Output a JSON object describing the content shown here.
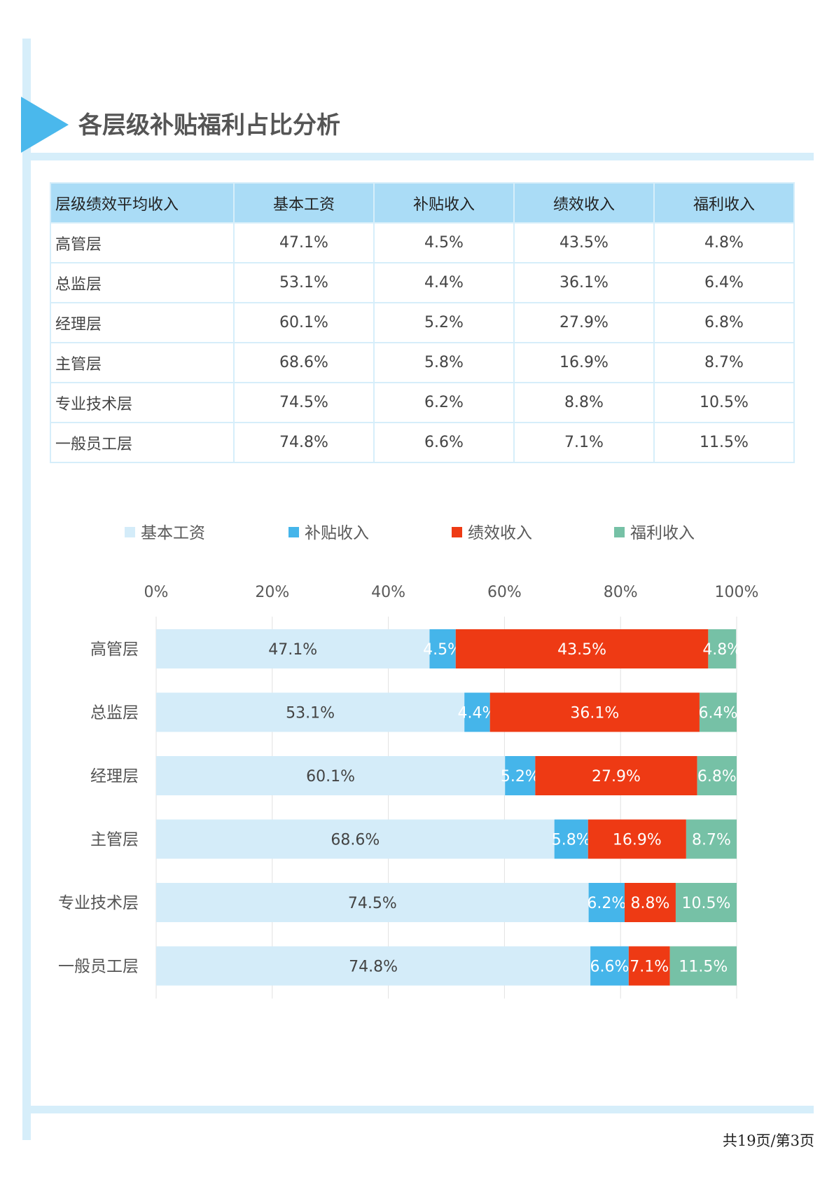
{
  "page": {
    "title": "各层级补贴福利占比分析",
    "footer": "共19页/第3页"
  },
  "table": {
    "headers": [
      "层级绩效平均收入",
      "基本工资",
      "补贴收入",
      "绩效收入",
      "福利收入"
    ],
    "rows": [
      [
        "高管层",
        "47.1%",
        "4.5%",
        "43.5%",
        "4.8%"
      ],
      [
        "总监层",
        "53.1%",
        "4.4%",
        "36.1%",
        "6.4%"
      ],
      [
        "经理层",
        "60.1%",
        "5.2%",
        "27.9%",
        "6.8%"
      ],
      [
        "主管层",
        "68.6%",
        "5.8%",
        "16.9%",
        "8.7%"
      ],
      [
        "专业技术层",
        "74.5%",
        "6.2%",
        "8.8%",
        "10.5%"
      ],
      [
        "一般员工层",
        "74.8%",
        "6.6%",
        "7.1%",
        "11.5%"
      ]
    ]
  },
  "chart_data": {
    "type": "bar",
    "orientation": "horizontal",
    "stacked": true,
    "categories": [
      "高管层",
      "总监层",
      "经理层",
      "主管层",
      "专业技术层",
      "一般员工层"
    ],
    "series": [
      {
        "name": "基本工资",
        "color": "#d4ecf9",
        "label_color": "#444444",
        "values": [
          47.1,
          53.1,
          60.1,
          68.6,
          74.5,
          74.8
        ]
      },
      {
        "name": "补贴收入",
        "color": "#45b5ea",
        "label_color": "#ffffff",
        "values": [
          4.5,
          4.4,
          5.2,
          5.8,
          6.2,
          6.6
        ]
      },
      {
        "name": "绩效收入",
        "color": "#ee3a14",
        "label_color": "#ffffff",
        "values": [
          43.5,
          36.1,
          27.9,
          16.9,
          8.8,
          7.1
        ]
      },
      {
        "name": "福利收入",
        "color": "#76c1a6",
        "label_color": "#ffffff",
        "values": [
          4.8,
          6.4,
          6.8,
          8.7,
          10.5,
          11.5
        ]
      }
    ],
    "x_ticks": [
      "0%",
      "20%",
      "40%",
      "60%",
      "80%",
      "100%"
    ],
    "xlim": [
      0,
      100
    ],
    "grid": true,
    "legend_position": "top",
    "axis_position": "top"
  }
}
